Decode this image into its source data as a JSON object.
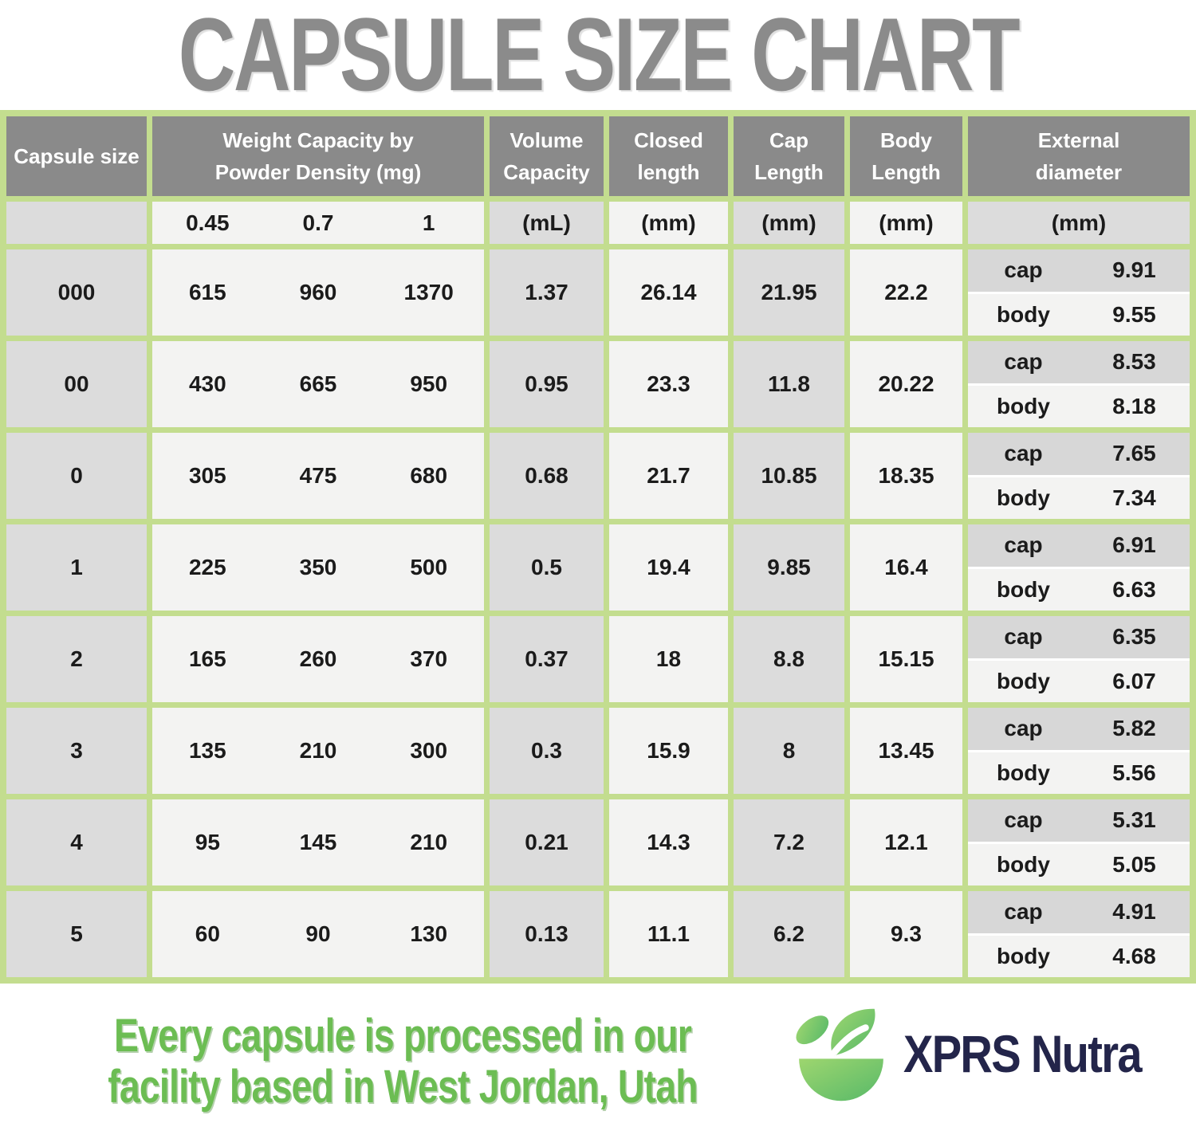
{
  "title": "CAPSULE SIZE CHART",
  "table": {
    "headers": {
      "capsule_size": "Capsule size",
      "weight": "Weight Capacity by Powder Density (mg)",
      "volume": "Volume Capacity",
      "closed": "Closed length",
      "cap": "Cap Length",
      "body": "Body Length",
      "external": "External diameter"
    },
    "units": {
      "densities": [
        "0.45",
        "0.7",
        "1"
      ],
      "volume": "(mL)",
      "closed": "(mm)",
      "cap": "(mm)",
      "body": "(mm)",
      "external": "(mm)"
    },
    "cap_label": "cap",
    "body_label": "body"
  },
  "chart_data": {
    "type": "table",
    "title": "CAPSULE SIZE CHART",
    "columns": [
      "Capsule size",
      "Weight Capacity by Powder Density 0.45 (mg)",
      "Weight Capacity by Powder Density 0.7 (mg)",
      "Weight Capacity by Powder Density 1 (mg)",
      "Volume Capacity (mL)",
      "Closed length (mm)",
      "Cap Length (mm)",
      "Body Length (mm)",
      "External diameter cap (mm)",
      "External diameter body (mm)"
    ],
    "rows": [
      {
        "size": "000",
        "weights": [
          "615",
          "960",
          "1370"
        ],
        "volume": "1.37",
        "closed": "26.14",
        "cap_len": "21.95",
        "body_len": "22.2",
        "ext_cap": "9.91",
        "ext_body": "9.55"
      },
      {
        "size": "00",
        "weights": [
          "430",
          "665",
          "950"
        ],
        "volume": "0.95",
        "closed": "23.3",
        "cap_len": "11.8",
        "body_len": "20.22",
        "ext_cap": "8.53",
        "ext_body": "8.18"
      },
      {
        "size": "0",
        "weights": [
          "305",
          "475",
          "680"
        ],
        "volume": "0.68",
        "closed": "21.7",
        "cap_len": "10.85",
        "body_len": "18.35",
        "ext_cap": "7.65",
        "ext_body": "7.34"
      },
      {
        "size": "1",
        "weights": [
          "225",
          "350",
          "500"
        ],
        "volume": "0.5",
        "closed": "19.4",
        "cap_len": "9.85",
        "body_len": "16.4",
        "ext_cap": "6.91",
        "ext_body": "6.63"
      },
      {
        "size": "2",
        "weights": [
          "165",
          "260",
          "370"
        ],
        "volume": "0.37",
        "closed": "18",
        "cap_len": "8.8",
        "body_len": "15.15",
        "ext_cap": "6.35",
        "ext_body": "6.07"
      },
      {
        "size": "3",
        "weights": [
          "135",
          "210",
          "300"
        ],
        "volume": "0.3",
        "closed": "15.9",
        "cap_len": "8",
        "body_len": "13.45",
        "ext_cap": "5.82",
        "ext_body": "5.56"
      },
      {
        "size": "4",
        "weights": [
          "95",
          "145",
          "210"
        ],
        "volume": "0.21",
        "closed": "14.3",
        "cap_len": "7.2",
        "body_len": "12.1",
        "ext_cap": "5.31",
        "ext_body": "5.05"
      },
      {
        "size": "5",
        "weights": [
          "60",
          "90",
          "130"
        ],
        "volume": "0.13",
        "closed": "11.1",
        "cap_len": "6.2",
        "body_len": "9.3",
        "ext_cap": "4.91",
        "ext_body": "4.68"
      }
    ]
  },
  "footer": {
    "tagline_line1": "Every capsule is processed in our",
    "tagline_line2": "facility based in West Jordan, Utah",
    "brand": "XPRS Nutra",
    "icon": "leaf-bowl-icon"
  },
  "colors": {
    "green_border": "#c3dd8f",
    "header_gray": "#8a8a8a",
    "cell_gray": "#dcdcdc",
    "cell_light": "#f3f3f2",
    "title_gray": "#8b8b8b",
    "footer_green": "#6cbd53",
    "brand_navy": "#23254a",
    "logo_green_light": "#9ed66f",
    "logo_green_dark": "#57b969"
  }
}
